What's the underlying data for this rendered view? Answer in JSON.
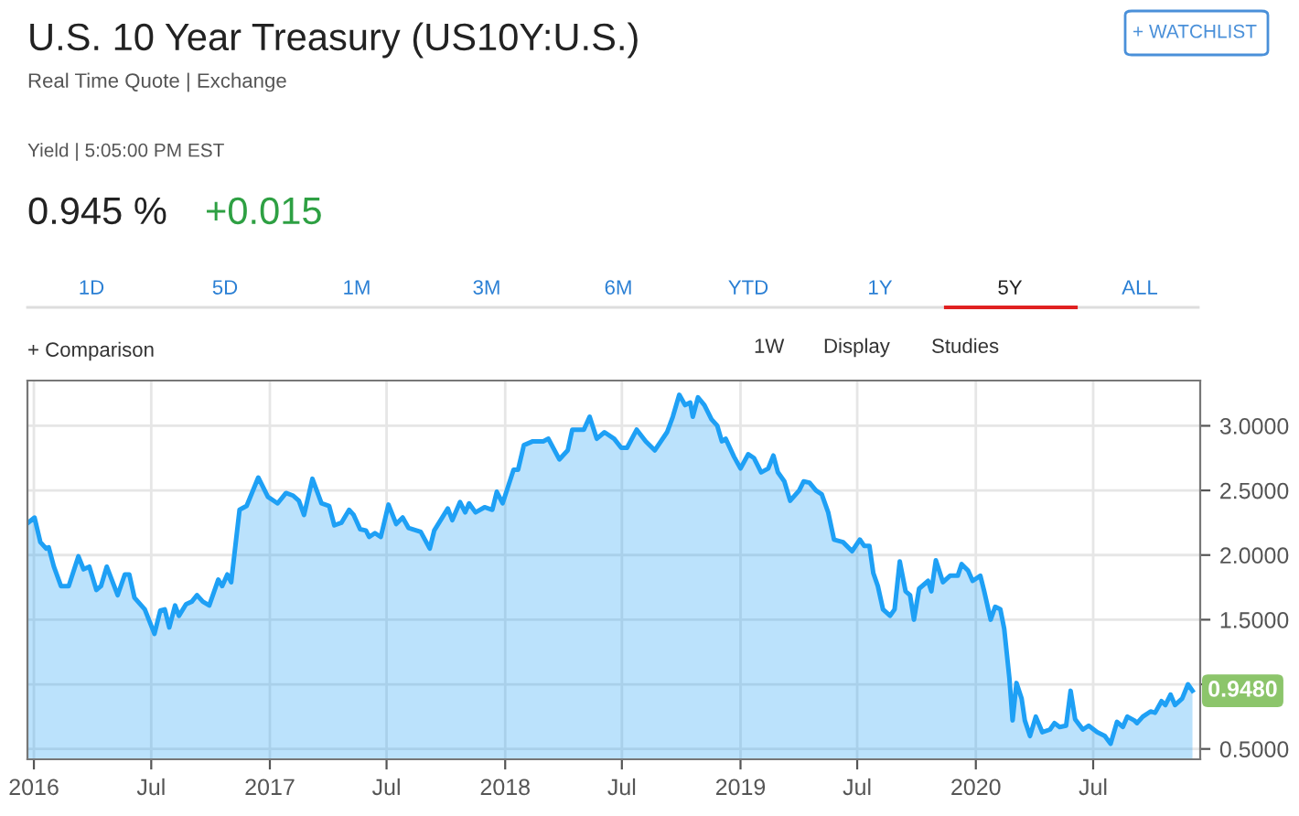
{
  "chart_data": {
    "type": "area",
    "title": "U.S. 10 Year Treasury (US10Y:U.S.)",
    "subtitle": "Real Time Quote | Exchange",
    "annotations": [
      "Yield | 5:05:00 PM EST",
      "0.945 %",
      "+0.015",
      "+ WATCHLIST",
      "1D",
      "5D",
      "1M",
      "3M",
      "6M",
      "YTD",
      "1Y",
      "5Y",
      "ALL",
      "+ Comparison",
      "1W",
      "Display",
      "Studies",
      {
        "text": "0.9480",
        "x": "2020-12-02",
        "y": 0.95
      }
    ],
    "series": [
      {
        "color": "#1ea0f5",
        "x": [
          "2015-12-23",
          "2016-01-02",
          "2016-01-11",
          "2016-01-20",
          "2016-01-24",
          "2016-02-01",
          "2016-02-12",
          "2016-02-24",
          "2016-03-10",
          "2016-03-18",
          "2016-03-27",
          "2016-04-07",
          "2016-04-14",
          "2016-04-23",
          "2016-05-10",
          "2016-05-21",
          "2016-05-28",
          "2016-06-05",
          "2016-06-21",
          "2016-07-06",
          "2016-07-15",
          "2016-07-22",
          "2016-07-29",
          "2016-08-07",
          "2016-08-13",
          "2016-08-24",
          "2016-09-02",
          "2016-09-10",
          "2016-09-19",
          "2016-09-29",
          "2016-10-13",
          "2016-10-19",
          "2016-10-27",
          "2016-11-02",
          "2016-11-15",
          "2016-11-26",
          "2016-12-14",
          "2016-12-29",
          "2017-01-13",
          "2017-01-26",
          "2017-02-06",
          "2017-02-15",
          "2017-02-23",
          "2017-03-08",
          "2017-03-22",
          "2017-04-03",
          "2017-04-11",
          "2017-04-22",
          "2017-05-04",
          "2017-05-11",
          "2017-05-21",
          "2017-05-30",
          "2017-06-04",
          "2017-06-13",
          "2017-06-22",
          "2017-07-04",
          "2017-07-16",
          "2017-07-26",
          "2017-08-04",
          "2017-08-23",
          "2017-09-06",
          "2017-09-13",
          "2017-10-04",
          "2017-10-11",
          "2017-10-23",
          "2017-10-31",
          "2017-11-06",
          "2017-11-16",
          "2017-11-30",
          "2017-12-12",
          "2017-12-19",
          "2017-12-28",
          "2018-01-14",
          "2018-01-21",
          "2018-01-30",
          "2018-02-13",
          "2018-03-01",
          "2018-03-09",
          "2018-03-26",
          "2018-04-08",
          "2018-04-15",
          "2018-05-03",
          "2018-05-12",
          "2018-05-23",
          "2018-06-04",
          "2018-06-19",
          "2018-06-30",
          "2018-07-09",
          "2018-07-24",
          "2018-08-07",
          "2018-08-21",
          "2018-09-09",
          "2018-09-18",
          "2018-09-28",
          "2018-10-07",
          "2018-10-15",
          "2018-10-19",
          "2018-10-27",
          "2018-11-06",
          "2018-11-17",
          "2018-11-26",
          "2018-12-03",
          "2018-12-09",
          "2018-12-22",
          "2019-01-01",
          "2019-01-13",
          "2019-01-22",
          "2019-02-02",
          "2019-02-13",
          "2019-02-21",
          "2019-02-28",
          "2019-03-10",
          "2019-03-19",
          "2019-04-02",
          "2019-04-09",
          "2019-04-18",
          "2019-04-28",
          "2019-05-07",
          "2019-05-17",
          "2019-05-26",
          "2019-06-09",
          "2019-06-23",
          "2019-07-05",
          "2019-07-12",
          "2019-07-20",
          "2019-07-26",
          "2019-08-02",
          "2019-08-10",
          "2019-08-21",
          "2019-08-28",
          "2019-09-05",
          "2019-09-14",
          "2019-09-21",
          "2019-09-27",
          "2019-10-05",
          "2019-10-19",
          "2019-10-24",
          "2019-10-31",
          "2019-11-11",
          "2019-11-22",
          "2019-12-04",
          "2019-12-10",
          "2019-12-20",
          "2019-12-27",
          "2020-01-08",
          "2020-01-14",
          "2020-01-24",
          "2020-01-31",
          "2020-02-08",
          "2020-02-14",
          "2020-02-22",
          "2020-02-27",
          "2020-03-04",
          "2020-03-12",
          "2020-03-17",
          "2020-03-25",
          "2020-04-03",
          "2020-04-13",
          "2020-04-25",
          "2020-05-02",
          "2020-05-10",
          "2020-05-20",
          "2020-05-27",
          "2020-06-03",
          "2020-06-15",
          "2020-06-24",
          "2020-07-07",
          "2020-07-19",
          "2020-07-28",
          "2020-08-07",
          "2020-08-16",
          "2020-08-23",
          "2020-09-03",
          "2020-09-07",
          "2020-09-16",
          "2020-09-28",
          "2020-10-05",
          "2020-10-15",
          "2020-10-21",
          "2020-10-29",
          "2020-11-05",
          "2020-11-16",
          "2020-11-25",
          "2020-12-02"
        ],
        "values": [
          2.25,
          2.29,
          2.1,
          2.05,
          2.06,
          1.91,
          1.76,
          1.76,
          1.99,
          1.89,
          1.91,
          1.73,
          1.76,
          1.91,
          1.69,
          1.85,
          1.85,
          1.67,
          1.58,
          1.39,
          1.57,
          1.58,
          1.44,
          1.61,
          1.53,
          1.62,
          1.64,
          1.69,
          1.64,
          1.61,
          1.81,
          1.76,
          1.85,
          1.79,
          2.35,
          2.38,
          2.6,
          2.45,
          2.4,
          2.48,
          2.46,
          2.42,
          2.31,
          2.59,
          2.4,
          2.38,
          2.23,
          2.25,
          2.35,
          2.31,
          2.2,
          2.19,
          2.14,
          2.17,
          2.14,
          2.39,
          2.24,
          2.29,
          2.21,
          2.18,
          2.05,
          2.19,
          2.36,
          2.27,
          2.41,
          2.33,
          2.4,
          2.33,
          2.37,
          2.35,
          2.49,
          2.4,
          2.66,
          2.66,
          2.85,
          2.88,
          2.88,
          2.9,
          2.74,
          2.81,
          2.97,
          2.97,
          3.07,
          2.9,
          2.95,
          2.9,
          2.83,
          2.83,
          2.97,
          2.88,
          2.81,
          2.95,
          3.07,
          3.24,
          3.16,
          3.18,
          3.07,
          3.22,
          3.16,
          3.05,
          3.0,
          2.88,
          2.9,
          2.76,
          2.67,
          2.78,
          2.75,
          2.64,
          2.67,
          2.77,
          2.64,
          2.57,
          2.42,
          2.5,
          2.57,
          2.56,
          2.5,
          2.47,
          2.33,
          2.12,
          2.1,
          2.03,
          2.12,
          2.07,
          2.07,
          1.86,
          1.76,
          1.58,
          1.53,
          1.58,
          1.95,
          1.72,
          1.69,
          1.5,
          1.74,
          1.8,
          1.72,
          1.96,
          1.79,
          1.84,
          1.84,
          1.93,
          1.88,
          1.8,
          1.84,
          1.72,
          1.5,
          1.6,
          1.58,
          1.43,
          1.05,
          0.72,
          1.01,
          0.89,
          0.72,
          0.6,
          0.75,
          0.63,
          0.65,
          0.7,
          0.67,
          0.68,
          0.95,
          0.73,
          0.65,
          0.68,
          0.63,
          0.6,
          0.54,
          0.71,
          0.67,
          0.75,
          0.72,
          0.7,
          0.75,
          0.79,
          0.78,
          0.87,
          0.84,
          0.92,
          0.84,
          0.89,
          1.0,
          0.95
        ]
      }
    ],
    "xlim": [
      "2015-12-22",
      "2020-12-14"
    ],
    "xticks": [
      {
        "value": "2016-01-01",
        "label": "2016"
      },
      {
        "value": "2016-07-01",
        "label": "Jul"
      },
      {
        "value": "2017-01-01",
        "label": "2017"
      },
      {
        "value": "2017-07-01",
        "label": "Jul"
      },
      {
        "value": "2018-01-01",
        "label": "2018"
      },
      {
        "value": "2018-07-01",
        "label": "Jul"
      },
      {
        "value": "2019-01-01",
        "label": "2019"
      },
      {
        "value": "2019-07-01",
        "label": "Jul"
      },
      {
        "value": "2020-01-01",
        "label": "2020"
      },
      {
        "value": "2020-07-01",
        "label": "Jul"
      }
    ],
    "ylim": [
      0.42,
      3.35
    ],
    "yticks": [
      {
        "value": 0.5,
        "label": "0.5000"
      },
      {
        "value": 1.0,
        "label": null
      },
      {
        "value": 1.5,
        "label": "1.5000"
      },
      {
        "value": 2.0,
        "label": "2.0000"
      },
      {
        "value": 2.5,
        "label": "2.5000"
      },
      {
        "value": 3.0,
        "label": "3.0000"
      }
    ],
    "grid": true
  }
}
